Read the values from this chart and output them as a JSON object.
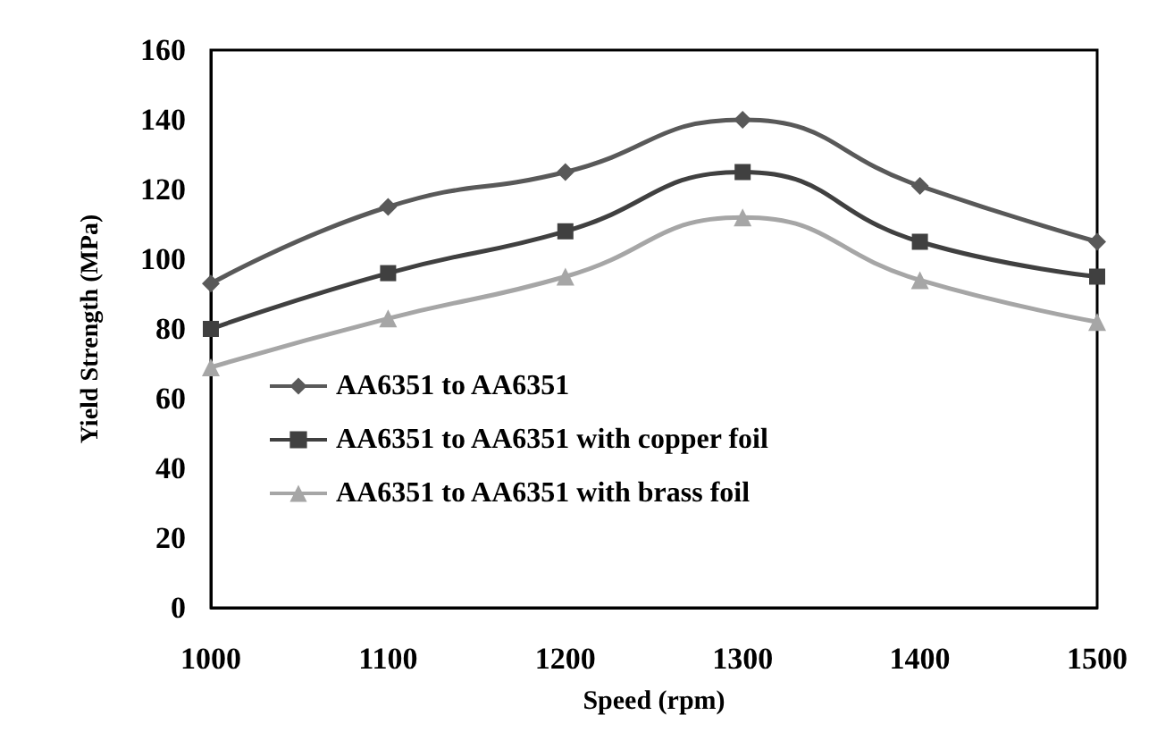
{
  "chart_data": {
    "type": "line",
    "xlabel": "Speed (rpm)",
    "ylabel": "Yield Strength (MPa)",
    "x": [
      1000,
      1100,
      1200,
      1300,
      1400,
      1500
    ],
    "series": [
      {
        "name": "AA6351 to AA6351",
        "color": "#595959",
        "marker": "diamond",
        "values": [
          93,
          115,
          125,
          140,
          121,
          105
        ]
      },
      {
        "name": "AA6351 to AA6351 with copper foil",
        "color": "#404040",
        "marker": "square",
        "values": [
          80,
          96,
          108,
          125,
          105,
          95
        ]
      },
      {
        "name": "AA6351 to AA6351 with brass foil",
        "color": "#a6a6a6",
        "marker": "triangle",
        "values": [
          69,
          83,
          95,
          112,
          94,
          82
        ]
      }
    ],
    "xlim": [
      1000,
      1500
    ],
    "xticks": [
      1000,
      1100,
      1200,
      1300,
      1400,
      1500
    ],
    "ylim": [
      0,
      160
    ],
    "yticks": [
      0,
      20,
      40,
      60,
      80,
      100,
      120,
      140,
      160
    ],
    "grid": false,
    "legend": "bottom left",
    "line_style": "solid"
  }
}
